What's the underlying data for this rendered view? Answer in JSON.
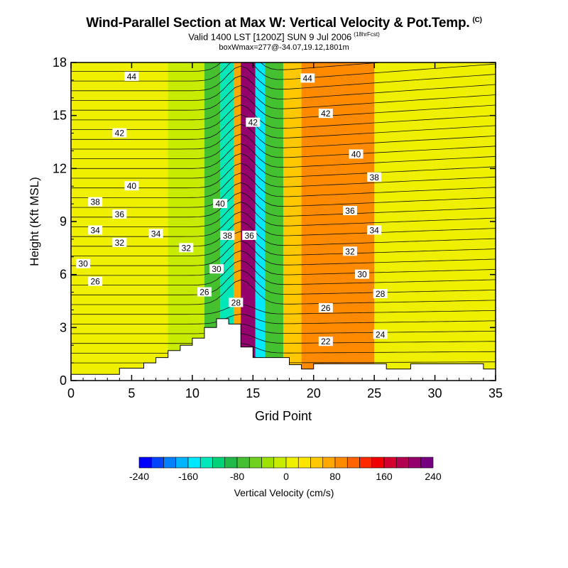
{
  "header": {
    "title": "Wind-Parallel Section at Max W: Vertical Velocity & Pot.Temp.",
    "copyright_mark": "(C)",
    "subtitle": "Valid 1400 LST [1200Z] SUN 9 Jul 2006",
    "forecast_hour": "(18hrFcst)",
    "box_line": "boxWmax=277@-34.07,19.12,1801m"
  },
  "chart_data": {
    "type": "heatmap",
    "xlabel": "Grid Point",
    "ylabel": "Height (Kft MSL)",
    "xlim": [
      0,
      35
    ],
    "ylim": [
      0,
      18
    ],
    "x_ticks": [
      0,
      5,
      10,
      15,
      20,
      25,
      30,
      35
    ],
    "y_ticks": [
      0,
      3,
      6,
      9,
      12,
      15,
      18
    ],
    "colorbar": {
      "label": "Vertical Velocity (cm/s)",
      "range": [
        -240,
        240
      ],
      "step": 20,
      "tick_labels": [
        "-240",
        "-160",
        "-80",
        "0",
        "80",
        "160",
        "240"
      ],
      "tick_values": [
        -240,
        -160,
        -80,
        0,
        80,
        160,
        240
      ],
      "colors": [
        "#0000ff",
        "#0044ff",
        "#0080ff",
        "#00b4ff",
        "#00e8ff",
        "#00e8b8",
        "#00d27a",
        "#22b84a",
        "#44c030",
        "#70d020",
        "#9ee000",
        "#c8ec00",
        "#eef000",
        "#ffe600",
        "#ffc800",
        "#ffa800",
        "#ff8a00",
        "#ff6400",
        "#ff2a00",
        "#f00000",
        "#d40030",
        "#b40050",
        "#94006c",
        "#740080"
      ]
    },
    "terrain_profile": [
      {
        "x": 0,
        "h": 0.35
      },
      {
        "x": 4,
        "h": 0.35
      },
      {
        "x": 4,
        "h": 0.7
      },
      {
        "x": 6,
        "h": 0.7
      },
      {
        "x": 6,
        "h": 1.0
      },
      {
        "x": 7,
        "h": 1.0
      },
      {
        "x": 7,
        "h": 1.3
      },
      {
        "x": 8,
        "h": 1.3
      },
      {
        "x": 8,
        "h": 1.7
      },
      {
        "x": 9,
        "h": 1.7
      },
      {
        "x": 9,
        "h": 2.0
      },
      {
        "x": 10,
        "h": 2.0
      },
      {
        "x": 10,
        "h": 2.4
      },
      {
        "x": 11,
        "h": 2.4
      },
      {
        "x": 11,
        "h": 3.0
      },
      {
        "x": 12,
        "h": 3.0
      },
      {
        "x": 12,
        "h": 3.5
      },
      {
        "x": 13,
        "h": 3.5
      },
      {
        "x": 13,
        "h": 3.2
      },
      {
        "x": 14,
        "h": 3.2
      },
      {
        "x": 14,
        "h": 1.9
      },
      {
        "x": 15,
        "h": 1.9
      },
      {
        "x": 15,
        "h": 1.3
      },
      {
        "x": 18,
        "h": 1.3
      },
      {
        "x": 18,
        "h": 0.9
      },
      {
        "x": 19,
        "h": 0.9
      },
      {
        "x": 19,
        "h": 0.65
      },
      {
        "x": 20,
        "h": 0.65
      },
      {
        "x": 20,
        "h": 0.95
      },
      {
        "x": 26,
        "h": 0.95
      },
      {
        "x": 26,
        "h": 0.65
      },
      {
        "x": 28,
        "h": 0.65
      },
      {
        "x": 28,
        "h": 0.95
      },
      {
        "x": 34,
        "h": 0.95
      },
      {
        "x": 34,
        "h": 0.65
      },
      {
        "x": 35,
        "h": 0.65
      }
    ],
    "velocity_bands": [
      {
        "x0": 0,
        "x1": 8,
        "w": 0
      },
      {
        "x0": 8,
        "x1": 11,
        "w": -20
      },
      {
        "x0": 11,
        "x1": 12.3,
        "w": -80
      },
      {
        "x0": 12.3,
        "x1": 13.4,
        "w": -140
      },
      {
        "x0": 13.4,
        "x1": 14.0,
        "w": 60
      },
      {
        "x0": 14.0,
        "x1": 15.2,
        "w": 200
      },
      {
        "x0": 15.2,
        "x1": 16.0,
        "w": -160
      },
      {
        "x0": 16.0,
        "x1": 17.5,
        "w": -80
      },
      {
        "x0": 17.5,
        "x1": 19,
        "w": 40
      },
      {
        "x0": 19,
        "x1": 25,
        "w": 80
      },
      {
        "x0": 25,
        "x1": 35,
        "w": 0
      }
    ],
    "isentropes": [
      {
        "value": 44,
        "label_at": {
          "x": 5,
          "y": 17.2
        }
      },
      {
        "value": 44,
        "label_at": {
          "x": 19.5,
          "y": 17.1
        }
      },
      {
        "value": 42,
        "label_at": {
          "x": 4,
          "y": 14.0
        }
      },
      {
        "value": 42,
        "label_at": {
          "x": 15,
          "y": 14.6
        }
      },
      {
        "value": 42,
        "label_at": {
          "x": 21,
          "y": 15.1
        }
      },
      {
        "value": 40,
        "label_at": {
          "x": 5,
          "y": 11.0
        }
      },
      {
        "value": 40,
        "label_at": {
          "x": 12.3,
          "y": 10.0
        }
      },
      {
        "value": 40,
        "label_at": {
          "x": 23.5,
          "y": 12.8
        }
      },
      {
        "value": 38,
        "label_at": {
          "x": 2,
          "y": 10.1
        }
      },
      {
        "value": 38,
        "label_at": {
          "x": 12.9,
          "y": 8.2
        }
      },
      {
        "value": 38,
        "label_at": {
          "x": 25,
          "y": 11.5
        }
      },
      {
        "value": 36,
        "label_at": {
          "x": 4,
          "y": 9.4
        }
      },
      {
        "value": 36,
        "label_at": {
          "x": 14.7,
          "y": 8.2
        }
      },
      {
        "value": 36,
        "label_at": {
          "x": 23,
          "y": 9.6
        }
      },
      {
        "value": 34,
        "label_at": {
          "x": 2,
          "y": 8.5
        }
      },
      {
        "value": 34,
        "label_at": {
          "x": 7,
          "y": 8.3
        }
      },
      {
        "value": 34,
        "label_at": {
          "x": 25,
          "y": 8.5
        }
      },
      {
        "value": 32,
        "label_at": {
          "x": 4,
          "y": 7.8
        }
      },
      {
        "value": 32,
        "label_at": {
          "x": 9.5,
          "y": 7.5
        }
      },
      {
        "value": 32,
        "label_at": {
          "x": 23,
          "y": 7.3
        }
      },
      {
        "value": 30,
        "label_at": {
          "x": 1,
          "y": 6.6
        }
      },
      {
        "value": 30,
        "label_at": {
          "x": 12,
          "y": 6.3
        }
      },
      {
        "value": 30,
        "label_at": {
          "x": 24,
          "y": 6.0
        }
      },
      {
        "value": 28,
        "label_at": {
          "x": 13.6,
          "y": 4.4
        }
      },
      {
        "value": 28,
        "label_at": {
          "x": 25.5,
          "y": 4.9
        }
      },
      {
        "value": 26,
        "label_at": {
          "x": 2,
          "y": 5.6
        }
      },
      {
        "value": 26,
        "label_at": {
          "x": 11,
          "y": 5.0
        }
      },
      {
        "value": 26,
        "label_at": {
          "x": 21,
          "y": 4.1
        }
      },
      {
        "value": 24,
        "label_at": {
          "x": 25.5,
          "y": 2.6
        }
      },
      {
        "value": 22,
        "label_at": {
          "x": 21,
          "y": 2.2
        }
      }
    ]
  }
}
